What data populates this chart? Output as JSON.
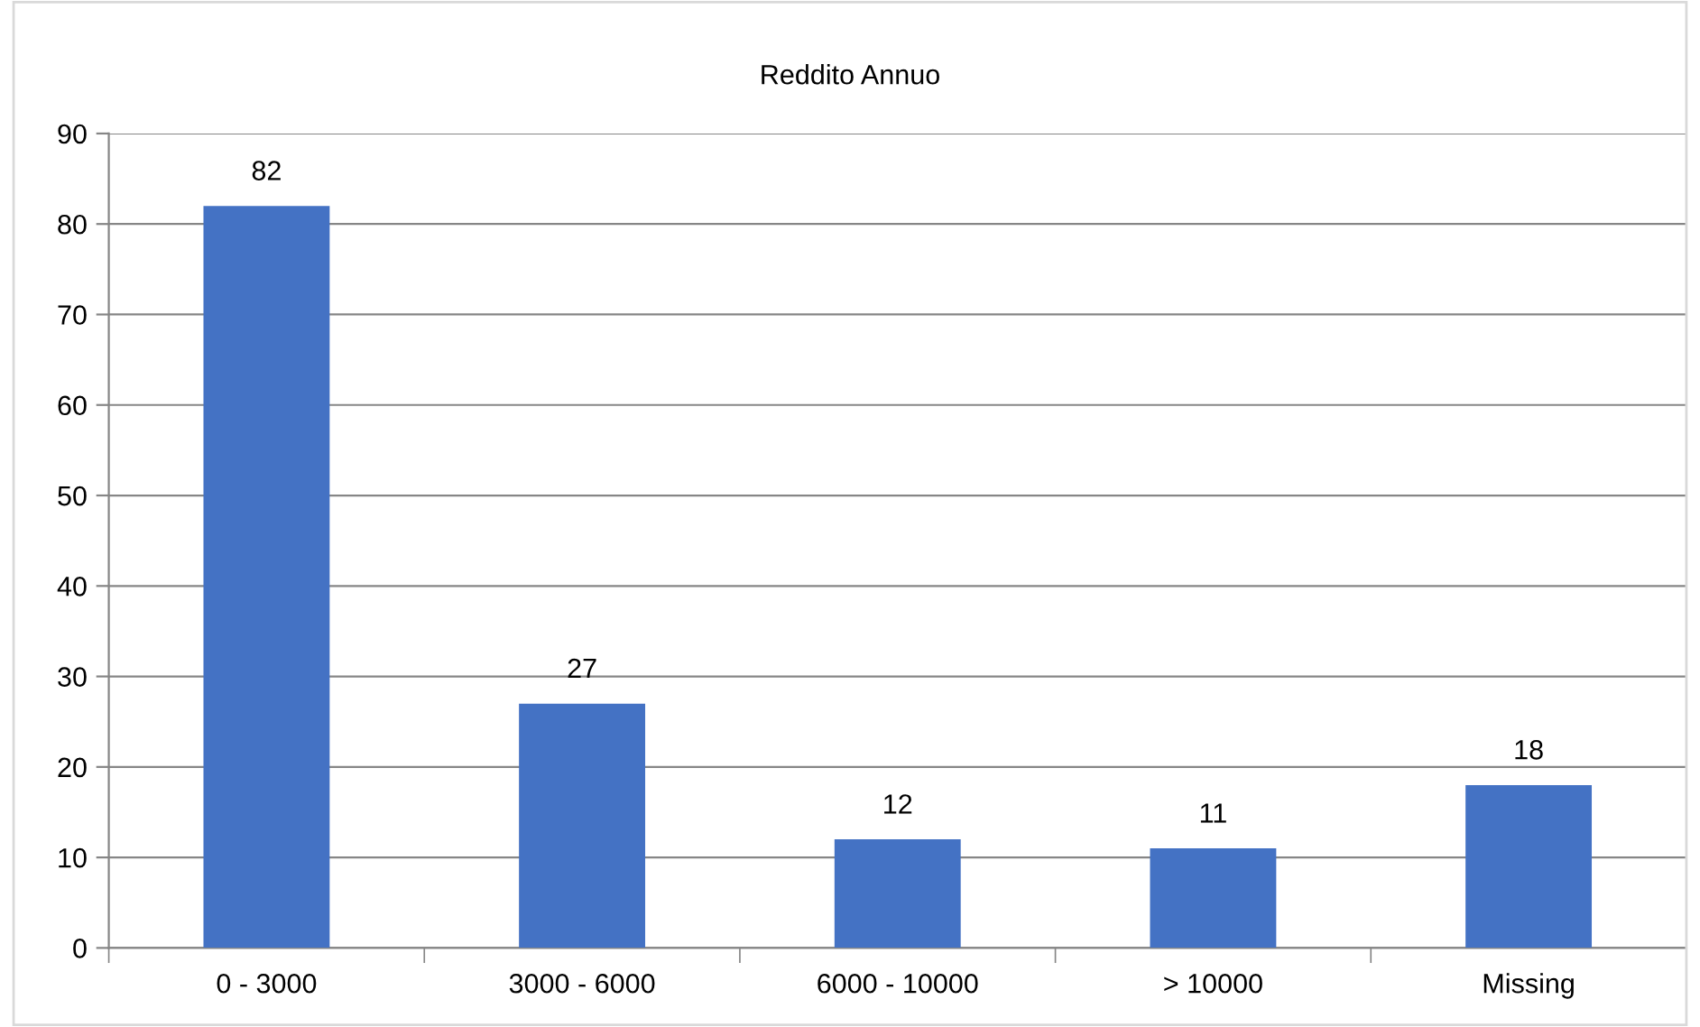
{
  "chart_data": {
    "type": "bar",
    "title": "Reddito Annuo",
    "categories": [
      "0 - 3000",
      "3000 - 6000",
      "6000 - 10000",
      "> 10000",
      "Missing"
    ],
    "values": [
      82,
      27,
      12,
      11,
      18
    ],
    "color": "#4472c4",
    "ylim": [
      0,
      90
    ],
    "yticks": [
      0,
      10,
      20,
      30,
      40,
      50,
      60,
      70,
      80,
      90
    ],
    "grid": "y",
    "data_labels": true,
    "legend": false
  }
}
